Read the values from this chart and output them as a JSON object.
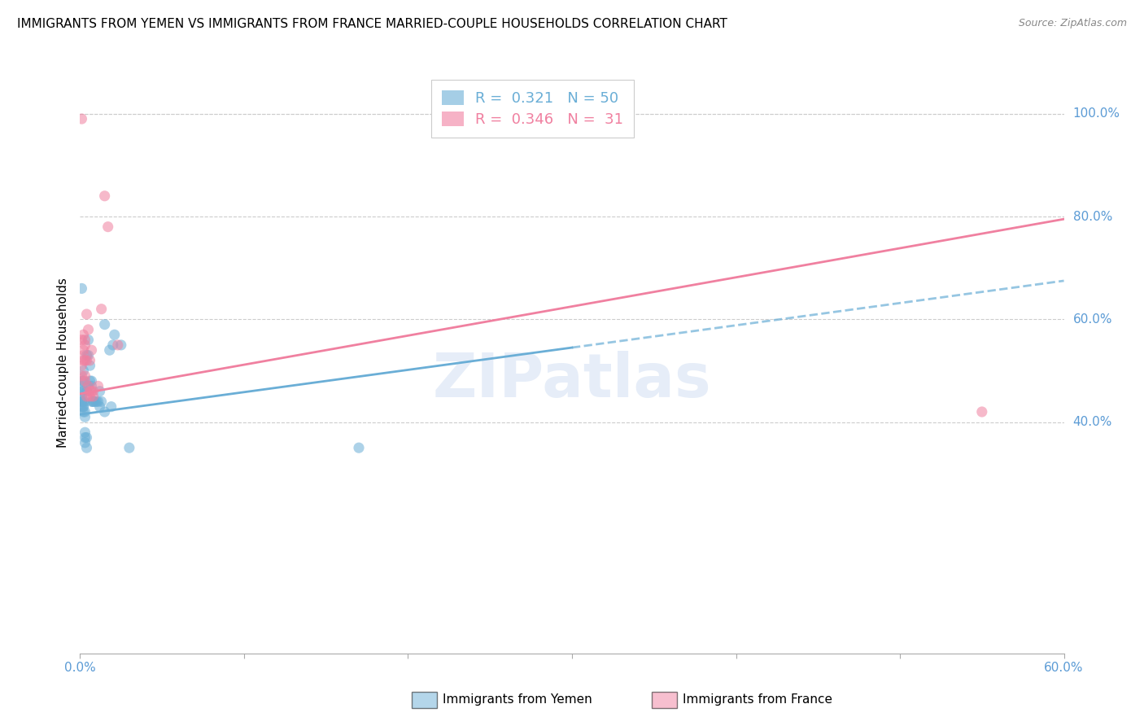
{
  "title": "IMMIGRANTS FROM YEMEN VS IMMIGRANTS FROM FRANCE MARRIED-COUPLE HOUSEHOLDS CORRELATION CHART",
  "source": "Source: ZipAtlas.com",
  "ylabel": "Married-couple Households",
  "xlim": [
    0,
    0.6
  ],
  "ylim": [
    -0.05,
    1.08
  ],
  "xticks": [
    0.0,
    0.1,
    0.2,
    0.3,
    0.4,
    0.5,
    0.6
  ],
  "xticklabels": [
    "0.0%",
    "",
    "",
    "",
    "",
    "",
    "60.0%"
  ],
  "yticks_right": [
    0.4,
    0.6,
    0.8,
    1.0
  ],
  "yticklabels_right": [
    "40.0%",
    "60.0%",
    "80.0%",
    "100.0%"
  ],
  "legend_label_yemen": "R =  0.321   N = 50",
  "legend_label_france": "R =  0.346   N =  31",
  "watermark": "ZIPatlas",
  "yemen_color": "#6aaed6",
  "france_color": "#f080a0",
  "yemen_scatter": [
    [
      0.001,
      0.66
    ],
    [
      0.001,
      0.47
    ],
    [
      0.001,
      0.43
    ],
    [
      0.001,
      0.44
    ],
    [
      0.001,
      0.48
    ],
    [
      0.001,
      0.45
    ],
    [
      0.001,
      0.44
    ],
    [
      0.001,
      0.46
    ],
    [
      0.002,
      0.43
    ],
    [
      0.002,
      0.42
    ],
    [
      0.002,
      0.44
    ],
    [
      0.002,
      0.46
    ],
    [
      0.002,
      0.48
    ],
    [
      0.002,
      0.5
    ],
    [
      0.002,
      0.43
    ],
    [
      0.003,
      0.41
    ],
    [
      0.003,
      0.42
    ],
    [
      0.003,
      0.38
    ],
    [
      0.003,
      0.36
    ],
    [
      0.003,
      0.37
    ],
    [
      0.003,
      0.44
    ],
    [
      0.004,
      0.35
    ],
    [
      0.004,
      0.37
    ],
    [
      0.004,
      0.46
    ],
    [
      0.004,
      0.53
    ],
    [
      0.005,
      0.56
    ],
    [
      0.005,
      0.53
    ],
    [
      0.005,
      0.47
    ],
    [
      0.006,
      0.48
    ],
    [
      0.006,
      0.51
    ],
    [
      0.007,
      0.47
    ],
    [
      0.007,
      0.48
    ],
    [
      0.007,
      0.44
    ],
    [
      0.008,
      0.44
    ],
    [
      0.008,
      0.44
    ],
    [
      0.009,
      0.44
    ],
    [
      0.01,
      0.44
    ],
    [
      0.011,
      0.44
    ],
    [
      0.012,
      0.43
    ],
    [
      0.012,
      0.46
    ],
    [
      0.013,
      0.44
    ],
    [
      0.015,
      0.59
    ],
    [
      0.015,
      0.42
    ],
    [
      0.018,
      0.54
    ],
    [
      0.019,
      0.43
    ],
    [
      0.02,
      0.55
    ],
    [
      0.021,
      0.57
    ],
    [
      0.025,
      0.55
    ],
    [
      0.03,
      0.35
    ],
    [
      0.17,
      0.35
    ]
  ],
  "france_scatter": [
    [
      0.001,
      0.99
    ],
    [
      0.001,
      0.56
    ],
    [
      0.001,
      0.51
    ],
    [
      0.001,
      0.49
    ],
    [
      0.002,
      0.57
    ],
    [
      0.002,
      0.52
    ],
    [
      0.002,
      0.53
    ],
    [
      0.002,
      0.54
    ],
    [
      0.003,
      0.49
    ],
    [
      0.003,
      0.55
    ],
    [
      0.003,
      0.56
    ],
    [
      0.003,
      0.52
    ],
    [
      0.003,
      0.48
    ],
    [
      0.004,
      0.61
    ],
    [
      0.004,
      0.52
    ],
    [
      0.004,
      0.45
    ],
    [
      0.005,
      0.58
    ],
    [
      0.005,
      0.47
    ],
    [
      0.006,
      0.52
    ],
    [
      0.006,
      0.46
    ],
    [
      0.006,
      0.45
    ],
    [
      0.007,
      0.54
    ],
    [
      0.007,
      0.46
    ],
    [
      0.008,
      0.46
    ],
    [
      0.008,
      0.45
    ],
    [
      0.011,
      0.47
    ],
    [
      0.013,
      0.62
    ],
    [
      0.015,
      0.84
    ],
    [
      0.017,
      0.78
    ],
    [
      0.023,
      0.55
    ],
    [
      0.55,
      0.42
    ]
  ],
  "yemen_line": {
    "x0": 0.0,
    "y0": 0.415,
    "x1": 0.3,
    "y1": 0.545
  },
  "yemen_line_ext": {
    "x0": 0.3,
    "y0": 0.545,
    "x1": 0.6,
    "y1": 0.675
  },
  "france_line": {
    "x0": 0.0,
    "y0": 0.455,
    "x1": 0.6,
    "y1": 0.795
  },
  "background_color": "#ffffff",
  "grid_color": "#cccccc",
  "title_fontsize": 11,
  "axis_tick_color": "#5b9bd5",
  "bottom_legend_labels": [
    "Immigrants from Yemen",
    "Immigrants from France"
  ]
}
